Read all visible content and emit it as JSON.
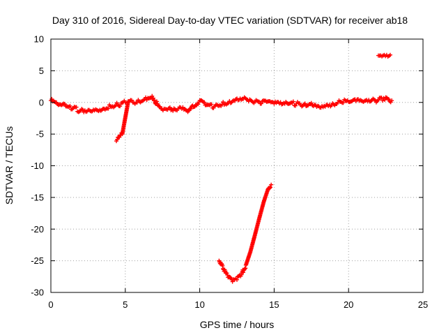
{
  "chart_data": {
    "type": "scatter",
    "title": "Day 310 of 2016, Sidereal Day-to-day VTEC variation (SDTVAR) for receiver ab18",
    "xlabel": "GPS time / hours",
    "ylabel": "SDTVAR / TECUs",
    "xlim": [
      0,
      25
    ],
    "ylim": [
      -30,
      10
    ],
    "xticks": [
      0,
      5,
      10,
      15,
      20,
      25
    ],
    "yticks": [
      -30,
      -25,
      -20,
      -15,
      -10,
      -5,
      0,
      5,
      10
    ],
    "grid": true,
    "marker": "plus",
    "color": "#ff0000",
    "series": [
      {
        "name": "SDTVAR",
        "x": [
          0.0,
          0.5,
          1.0,
          1.5,
          2.0,
          2.5,
          3.0,
          3.5,
          4.0,
          4.5,
          5.0,
          4.4,
          4.6,
          4.8,
          5.2,
          5.8,
          6.3,
          6.8,
          7.2,
          7.6,
          8.0,
          8.4,
          8.8,
          9.2,
          10.0,
          10.5,
          11.0,
          11.5,
          12.0,
          12.5,
          13.0,
          13.5,
          14.0,
          14.5,
          15.0,
          15.5,
          16.0,
          16.5,
          17.0,
          17.5,
          18.0,
          18.5,
          19.0,
          19.5,
          20.0,
          20.5,
          21.0,
          21.5,
          22.0,
          22.5,
          22.9,
          22.0,
          22.4,
          22.8,
          11.3,
          11.6,
          11.9,
          12.2,
          12.5,
          12.8,
          13.1,
          13.4,
          13.7,
          14.0,
          14.3,
          14.6,
          14.8
        ],
        "y": [
          0.3,
          -0.4,
          -0.6,
          -0.9,
          -1.3,
          -1.2,
          -1.1,
          -1.0,
          -0.6,
          -0.4,
          0.0,
          -6.1,
          -5.5,
          -5.0,
          0.2,
          0.0,
          0.5,
          1.0,
          -0.5,
          -1.0,
          -0.8,
          -1.2,
          -1.0,
          -1.5,
          0.3,
          -0.4,
          -0.6,
          -0.3,
          0.2,
          0.6,
          0.8,
          0.2,
          0.1,
          0.1,
          -0.2,
          -0.3,
          -0.2,
          -0.2,
          -0.3,
          -0.1,
          -0.6,
          -0.4,
          -0.3,
          0.1,
          0.1,
          0.2,
          0.1,
          0.2,
          0.4,
          0.8,
          0.3,
          7.4,
          7.5,
          7.5,
          -25.0,
          -26.4,
          -27.6,
          -28.3,
          -28.0,
          -27.2,
          -25.7,
          -23.6,
          -21.0,
          -18.3,
          -15.7,
          -13.6,
          -13.0
        ]
      }
    ]
  }
}
